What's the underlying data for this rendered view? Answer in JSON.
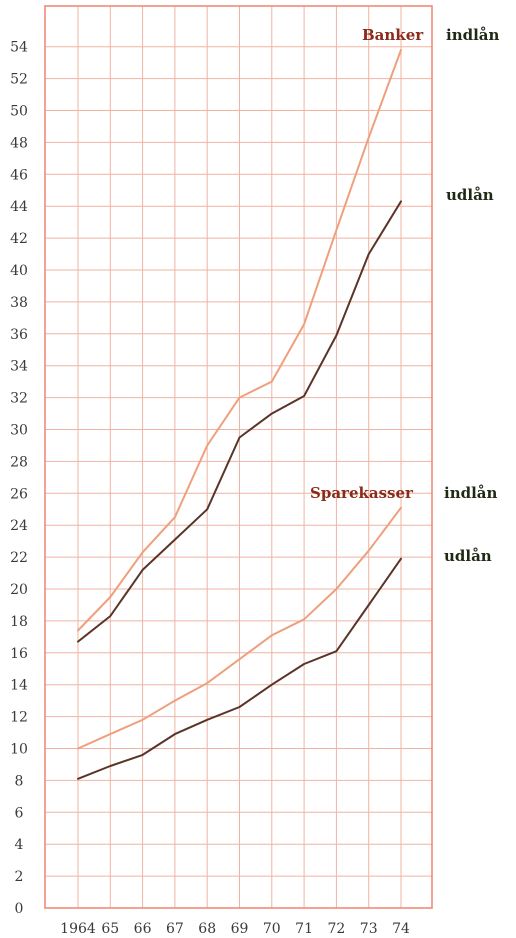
{
  "chart_data": {
    "type": "line",
    "x_ticks": [
      "1964",
      "65",
      "66",
      "67",
      "68",
      "69",
      "70",
      "71",
      "72",
      "73",
      "74"
    ],
    "x": [
      1964,
      1965,
      1966,
      1967,
      1968,
      1969,
      1970,
      1971,
      1972,
      1973,
      1974
    ],
    "ylim": [
      0,
      55
    ],
    "y_ticks": [
      "0",
      "2",
      "4",
      "6",
      "8",
      "10",
      "12",
      "14",
      "16",
      "18",
      "20",
      "22",
      "24",
      "26",
      "28",
      "30",
      "32",
      "34",
      "36",
      "38",
      "40",
      "42",
      "44",
      "46",
      "48",
      "50",
      "52",
      "54"
    ],
    "grid": true,
    "colors": {
      "indlan": "#eea07e",
      "udlan": "#5a3428",
      "grid": "#f0b3a2",
      "frame": "#f08a78"
    },
    "series": [
      {
        "name": "indlån",
        "group": "Banker",
        "kind": "indlan",
        "values": [
          17.4,
          19.5,
          22.3,
          24.5,
          29.0,
          32.0,
          33.0,
          36.6,
          42.5,
          48.3,
          53.8
        ]
      },
      {
        "name": "udlån",
        "group": "Banker",
        "kind": "udlan",
        "values": [
          16.7,
          18.3,
          21.2,
          23.1,
          25.0,
          29.5,
          31.0,
          32.1,
          35.9,
          41.0,
          44.3
        ]
      },
      {
        "name": "indlån",
        "group": "Sparekasser",
        "kind": "indlan",
        "values": [
          10.0,
          10.9,
          11.8,
          13.0,
          14.1,
          15.6,
          17.1,
          18.1,
          20.0,
          22.4,
          25.1
        ]
      },
      {
        "name": "udlån",
        "group": "Sparekasser",
        "kind": "udlan",
        "values": [
          8.1,
          8.9,
          9.6,
          10.9,
          11.8,
          12.6,
          14.0,
          15.3,
          16.1,
          19.0,
          21.9
        ]
      }
    ],
    "labels": {
      "banker": "Banker",
      "banker_indlan": "indlån",
      "banker_udlan": "udlån",
      "sparekasser": "Sparekasser",
      "sparekasser_indlan": "indlån",
      "sparekasser_udlan": "udlån"
    }
  }
}
